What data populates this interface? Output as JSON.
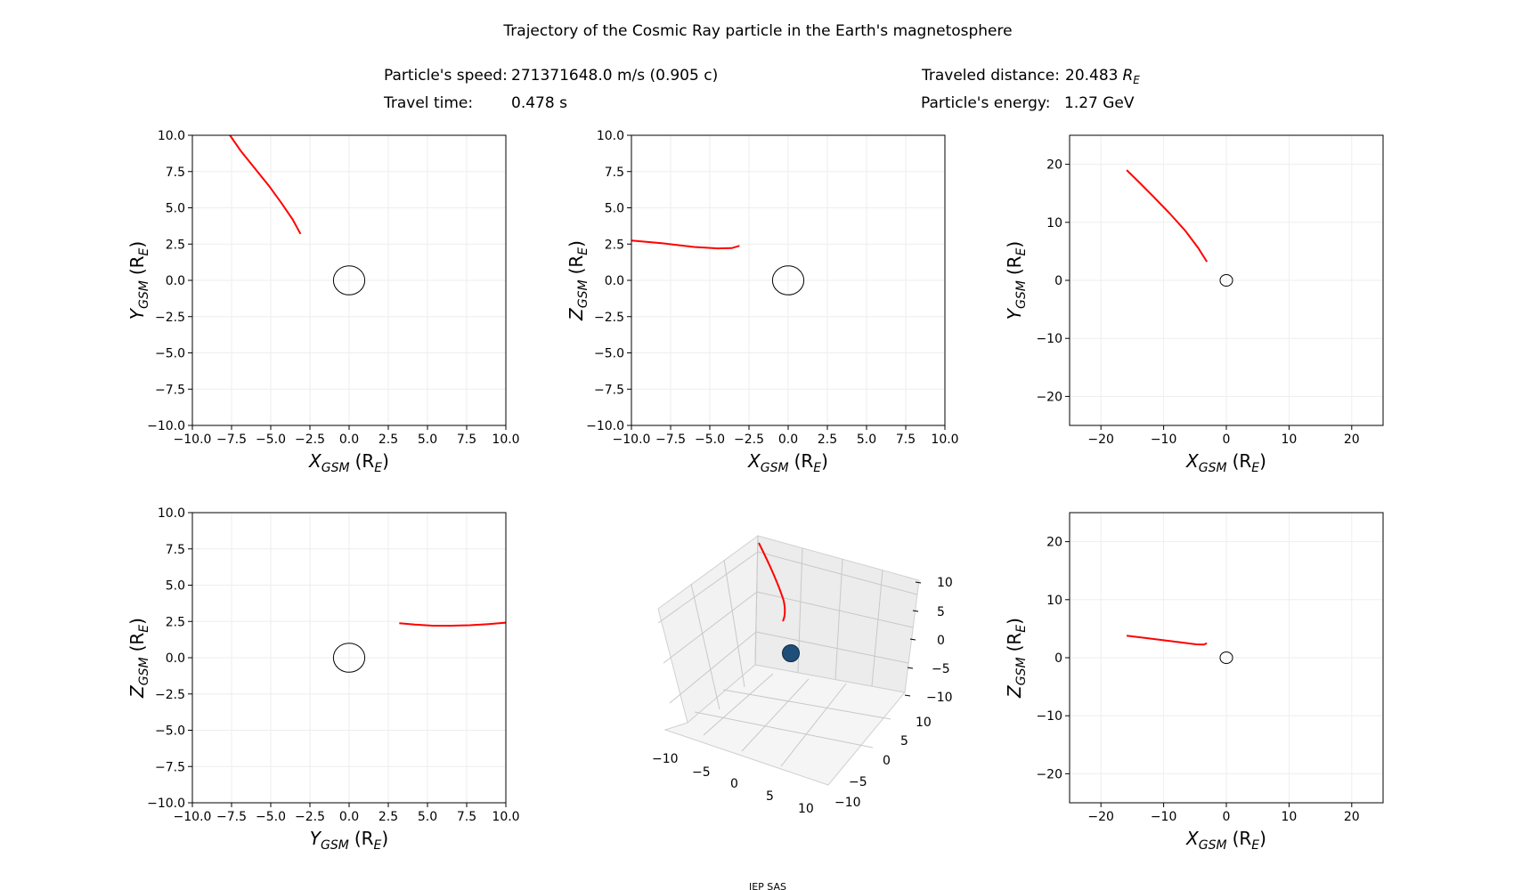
{
  "title": "Trajectory of the Cosmic Ray particle in the Earth's magnetosphere",
  "info": {
    "speed_label": "Particle's speed:",
    "speed_value": "271371648.0 m/s (0.905 c)",
    "time_label": "Travel time:",
    "time_value": "0.478 s",
    "distance_label": "Traveled distance:",
    "distance_value": "20.483",
    "distance_unit": "R",
    "distance_unit_sub": "E",
    "energy_label": "Particle's energy:",
    "energy_value": "1.27 GeV"
  },
  "footer": "IEP SAS",
  "colors": {
    "trajectory": "#ff0000",
    "earth_outline": "#000000",
    "earth_fill_3d": "#1f4e79",
    "grid": "#eeeeee"
  },
  "chart_data": [
    {
      "id": "xy",
      "type": "line",
      "xlabel": "X",
      "xlabel_sub": "GSM",
      "xlabel_unit": "(R",
      "xlabel_unit_sub": "E",
      "ylabel": "Y",
      "ylabel_sub": "GSM",
      "ylabel_unit": "(R",
      "ylabel_unit_sub": "E",
      "xlim": [
        -10,
        10
      ],
      "ylim": [
        -10,
        10
      ],
      "xticks": [
        "−10.0",
        "−7.5",
        "−5.0",
        "−2.5",
        "0.0",
        "2.5",
        "5.0",
        "7.5",
        "10.0"
      ],
      "yticks": [
        "−10.0",
        "−7.5",
        "−5.0",
        "−2.5",
        "0.0",
        "2.5",
        "5.0",
        "7.5",
        "10.0"
      ],
      "tick_values": [
        -10,
        -7.5,
        -5,
        -2.5,
        0,
        2.5,
        5,
        7.5,
        10
      ],
      "earth_radius": 1,
      "grid": true,
      "trajectory": [
        [
          -3.1,
          3.2
        ],
        [
          -3.6,
          4.2
        ],
        [
          -4.3,
          5.3
        ],
        [
          -5.1,
          6.5
        ],
        [
          -6.0,
          7.7
        ],
        [
          -6.9,
          8.9
        ],
        [
          -7.6,
          10.0
        ]
      ]
    },
    {
      "id": "xz",
      "type": "line",
      "xlabel": "X",
      "xlabel_sub": "GSM",
      "xlabel_unit": "(R",
      "xlabel_unit_sub": "E",
      "ylabel": "Z",
      "ylabel_sub": "GSM",
      "ylabel_unit": "(R",
      "ylabel_unit_sub": "E",
      "xlim": [
        -10,
        10
      ],
      "ylim": [
        -10,
        10
      ],
      "xticks": [
        "−10.0",
        "−7.5",
        "−5.0",
        "−2.5",
        "0.0",
        "2.5",
        "5.0",
        "7.5",
        "10.0"
      ],
      "yticks": [
        "−10.0",
        "−7.5",
        "−5.0",
        "−2.5",
        "0.0",
        "2.5",
        "5.0",
        "7.5",
        "10.0"
      ],
      "tick_values": [
        -10,
        -7.5,
        -5,
        -2.5,
        0,
        2.5,
        5,
        7.5,
        10
      ],
      "earth_radius": 1,
      "grid": true,
      "trajectory": [
        [
          -10.0,
          2.75
        ],
        [
          -8.0,
          2.55
        ],
        [
          -6.0,
          2.3
        ],
        [
          -4.5,
          2.2
        ],
        [
          -3.6,
          2.22
        ],
        [
          -3.1,
          2.38
        ]
      ]
    },
    {
      "id": "xy_wide",
      "type": "line",
      "xlabel": "X",
      "xlabel_sub": "GSM",
      "xlabel_unit": "(R",
      "xlabel_unit_sub": "E",
      "ylabel": "Y",
      "ylabel_sub": "GSM",
      "ylabel_unit": "(R",
      "ylabel_unit_sub": "E",
      "xlim": [
        -25,
        25
      ],
      "ylim": [
        -25,
        25
      ],
      "xticks": [
        "−20",
        "−10",
        "0",
        "10",
        "20"
      ],
      "yticks": [
        "−20",
        "−10",
        "0",
        "10",
        "20"
      ],
      "tick_values": [
        -20,
        -10,
        0,
        10,
        20
      ],
      "earth_radius": 1,
      "grid": true,
      "trajectory": [
        [
          -3.1,
          3.2
        ],
        [
          -4.5,
          5.6
        ],
        [
          -6.5,
          8.5
        ],
        [
          -9.0,
          11.5
        ],
        [
          -11.5,
          14.3
        ],
        [
          -13.8,
          16.8
        ],
        [
          -15.9,
          19.0
        ]
      ]
    },
    {
      "id": "yz",
      "type": "line",
      "xlabel": "Y",
      "xlabel_sub": "GSM",
      "xlabel_unit": "(R",
      "xlabel_unit_sub": "E",
      "ylabel": "Z",
      "ylabel_sub": "GSM",
      "ylabel_unit": "(R",
      "ylabel_unit_sub": "E",
      "xlim": [
        -10,
        10
      ],
      "ylim": [
        -10,
        10
      ],
      "xticks": [
        "−10.0",
        "−7.5",
        "−5.0",
        "−2.5",
        "0.0",
        "2.5",
        "5.0",
        "7.5",
        "10.0"
      ],
      "yticks": [
        "−10.0",
        "−7.5",
        "−5.0",
        "−2.5",
        "0.0",
        "2.5",
        "5.0",
        "7.5",
        "10.0"
      ],
      "tick_values": [
        -10,
        -7.5,
        -5,
        -2.5,
        0,
        2.5,
        5,
        7.5,
        10
      ],
      "earth_radius": 1,
      "grid": true,
      "trajectory": [
        [
          3.2,
          2.38
        ],
        [
          4.2,
          2.28
        ],
        [
          5.3,
          2.21
        ],
        [
          6.5,
          2.2
        ],
        [
          7.7,
          2.24
        ],
        [
          8.9,
          2.32
        ],
        [
          10.0,
          2.42
        ]
      ]
    },
    {
      "id": "xz_wide",
      "type": "line",
      "xlabel": "X",
      "xlabel_sub": "GSM",
      "xlabel_unit": "(R",
      "xlabel_unit_sub": "E",
      "ylabel": "Z",
      "ylabel_sub": "GSM",
      "ylabel_unit": "(R",
      "ylabel_unit_sub": "E",
      "xlim": [
        -25,
        25
      ],
      "ylim": [
        -25,
        25
      ],
      "xticks": [
        "−20",
        "−10",
        "0",
        "10",
        "20"
      ],
      "yticks": [
        "−20",
        "−10",
        "0",
        "10",
        "20"
      ],
      "tick_values": [
        -20,
        -10,
        0,
        10,
        20
      ],
      "earth_radius": 1,
      "grid": true,
      "trajectory": [
        [
          -15.9,
          3.8
        ],
        [
          -13.0,
          3.4
        ],
        [
          -10.0,
          3.0
        ],
        [
          -7.0,
          2.6
        ],
        [
          -4.8,
          2.3
        ],
        [
          -3.6,
          2.25
        ],
        [
          -3.1,
          2.5
        ]
      ]
    },
    {
      "id": "3d",
      "type": "line",
      "projection": "3d",
      "xlim": [
        -10,
        10
      ],
      "ylim": [
        -10,
        10
      ],
      "zlim": [
        -10,
        10
      ],
      "x_ticks": [
        "−10",
        "−5",
        "0",
        "5",
        "10"
      ],
      "y_ticks": [
        "−10",
        "−5",
        "0",
        "5",
        "10"
      ],
      "z_ticks": [
        "10",
        "5",
        "0",
        "−5",
        "−10"
      ],
      "grid": true
    }
  ]
}
